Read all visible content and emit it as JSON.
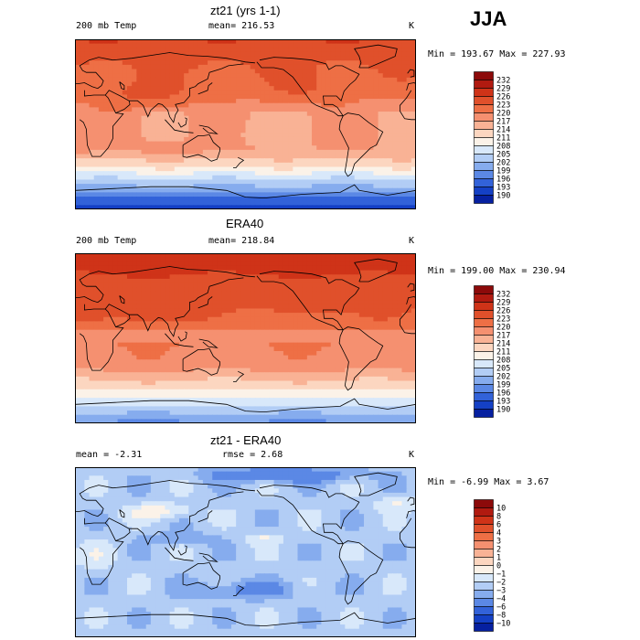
{
  "season": "JJA",
  "chart_data": [
    {
      "type": "heatmap",
      "title": "zt21 (yrs 1-1)",
      "variable": "200 mb Temp",
      "mean_text": "mean= 216.53",
      "unit": "K",
      "minmax_text": "Min = 193.67 Max = 227.93",
      "min": 193.67,
      "max": 227.93,
      "mean": 216.53,
      "levels": [
        "232",
        "229",
        "226",
        "223",
        "220",
        "217",
        "214",
        "211",
        "208",
        "205",
        "202",
        "199",
        "196",
        "193",
        "190"
      ],
      "colors": [
        "#8c0a0a",
        "#b11a10",
        "#cf3318",
        "#e0502b",
        "#ee6f45",
        "#f59070",
        "#f9b295",
        "#fcd6c0",
        "#fbf2e8",
        "#d8e8fa",
        "#b2cdf5",
        "#86acee",
        "#5b88e5",
        "#3262d9",
        "#1440c5",
        "#0620a0"
      ],
      "field_model": "model"
    },
    {
      "type": "heatmap",
      "title": "ERA40",
      "variable": "200 mb Temp",
      "mean_text": "mean= 218.84",
      "unit": "K",
      "minmax_text": "Min = 199.00 Max = 230.94",
      "min": 199.0,
      "max": 230.94,
      "mean": 218.84,
      "levels": [
        "232",
        "229",
        "226",
        "223",
        "220",
        "217",
        "214",
        "211",
        "208",
        "205",
        "202",
        "199",
        "196",
        "193",
        "190"
      ],
      "colors": [
        "#8c0a0a",
        "#b11a10",
        "#cf3318",
        "#e0502b",
        "#ee6f45",
        "#f59070",
        "#f9b295",
        "#fcd6c0",
        "#fbf2e8",
        "#d8e8fa",
        "#b2cdf5",
        "#86acee",
        "#5b88e5",
        "#3262d9",
        "#1440c5",
        "#0620a0"
      ],
      "field_model": "obs"
    },
    {
      "type": "heatmap",
      "title": "zt21 - ERA40",
      "variable": "mean =  -2.31",
      "mean_text": "rmse =   2.68",
      "unit": "K",
      "minmax_text": "Min =  -6.99 Max =   3.67",
      "min": -6.99,
      "max": 3.67,
      "mean": -2.31,
      "rmse": 2.68,
      "levels": [
        "10",
        "8",
        "6",
        "4",
        "3",
        "2",
        "1",
        "0",
        "−1",
        "−2",
        "−3",
        "−4",
        "−6",
        "−8",
        "−10"
      ],
      "colors": [
        "#8c0a0a",
        "#b11a10",
        "#cf3318",
        "#e0502b",
        "#ee6f45",
        "#f59070",
        "#f9b295",
        "#fcd6c0",
        "#fbf2e8",
        "#d8e8fa",
        "#b2cdf5",
        "#86acee",
        "#5b88e5",
        "#3262d9",
        "#1440c5",
        "#0620a0"
      ],
      "field_model": "diff"
    }
  ]
}
